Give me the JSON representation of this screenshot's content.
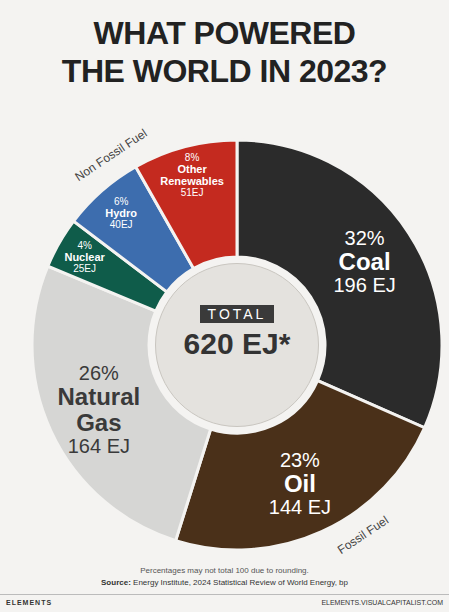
{
  "chart_data": {
    "type": "pie",
    "title": "WHAT POWERED THE WORLD IN 2023?",
    "categories": [
      "Coal",
      "Oil",
      "Natural Gas",
      "Nuclear",
      "Hydro",
      "Other Renewables"
    ],
    "values": [
      196,
      144,
      164,
      25,
      40,
      51
    ],
    "value_labels": [
      "196 EJ",
      "144 EJ",
      "164 EJ",
      "25EJ",
      "40EJ",
      "51EJ"
    ],
    "percent_labels": [
      "32%",
      "23%",
      "26%",
      "4%",
      "6%",
      "8%"
    ],
    "colors": [
      "#2b2b2b",
      "#4a3019",
      "#d6d6d4",
      "#0f5c4a",
      "#3d6dae",
      "#c42a1f"
    ],
    "data_labels": true,
    "groups": [
      {
        "label": "Non Fossil Fuel",
        "members": [
          "Nuclear",
          "Hydro",
          "Other Renewables"
        ]
      },
      {
        "label": "Fossil Fuel",
        "members": [
          "Coal",
          "Oil",
          "Natural Gas"
        ]
      }
    ],
    "total_label": "TOTAL",
    "total": "620 EJ*",
    "note": "Percentages may not total 100 due to rounding.",
    "source_label": "Source:",
    "source": "Energy Institute, 2024 Statistical Review of World Energy, bp",
    "brand": "ELEMENTS",
    "url": "ELEMENTS.VISUALCAPITALIST.COM"
  }
}
